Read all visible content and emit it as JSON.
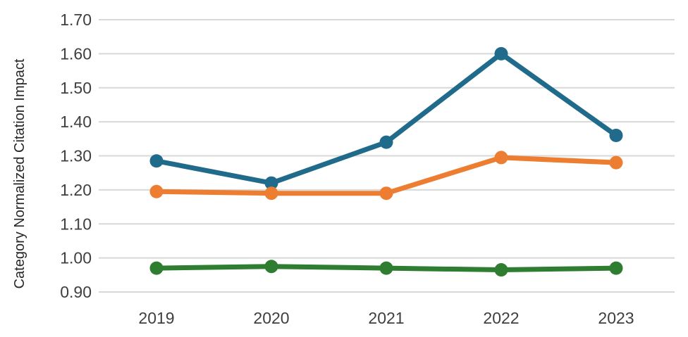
{
  "chart_data": {
    "type": "line",
    "title": "",
    "xlabel": "",
    "ylabel": "Category Normalized Citation Impact",
    "categories": [
      "2019",
      "2020",
      "2021",
      "2022",
      "2023"
    ],
    "series": [
      {
        "name": "blue-series",
        "color": "#206B8C",
        "values": [
          1.285,
          1.22,
          1.34,
          1.6,
          1.36
        ]
      },
      {
        "name": "orange-series",
        "color": "#ED7D31",
        "values": [
          1.195,
          1.19,
          1.19,
          1.295,
          1.28
        ]
      },
      {
        "name": "green-series",
        "color": "#2E7D31",
        "values": [
          0.97,
          0.975,
          0.97,
          0.965,
          0.97
        ]
      }
    ],
    "y_ticks": [
      1.7,
      1.6,
      1.5,
      1.4,
      1.3,
      1.2,
      1.1,
      1.0,
      0.9
    ],
    "y_tick_labels": [
      "1.70",
      "1.60",
      "1.50",
      "1.40",
      "1.30",
      "1.20",
      "1.10",
      "1.00",
      "0.90"
    ],
    "ylim": [
      0.9,
      1.7
    ],
    "grid": "horizontal",
    "legend": "none",
    "marker": "circle",
    "colors": {
      "background": "#ffffff",
      "gridline": "#D8D8D8",
      "tick_text": "#3F3F3F",
      "axis_label_text": "#262626"
    }
  }
}
